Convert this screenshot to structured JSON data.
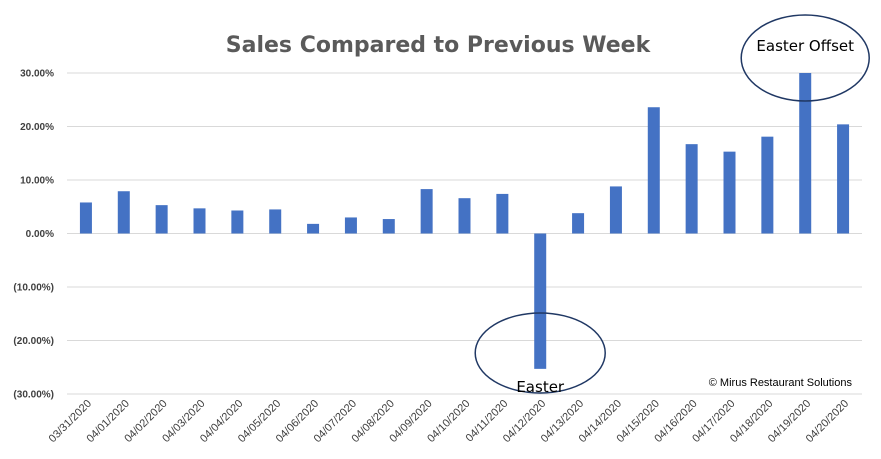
{
  "chart_data": {
    "type": "bar",
    "title": "Sales Compared to Previous Week",
    "xlabel": "",
    "ylabel": "",
    "ylim": [
      -30,
      30
    ],
    "yticks": [
      30,
      20,
      10,
      0,
      -10,
      -20,
      -30
    ],
    "ytick_labels": [
      "30.00%",
      "20.00%",
      "10.00%",
      "0.00%",
      "(10.00%)",
      "(20.00%)",
      "(30.00%)"
    ],
    "grid": true,
    "legend": "none",
    "bar_color": "#4472c4",
    "categories": [
      "03/31/2020",
      "04/01/2020",
      "04/02/2020",
      "04/03/2020",
      "04/04/2020",
      "04/05/2020",
      "04/06/2020",
      "04/07/2020",
      "04/08/2020",
      "04/09/2020",
      "04/10/2020",
      "04/11/2020",
      "04/12/2020",
      "04/13/2020",
      "04/14/2020",
      "04/15/2020",
      "04/16/2020",
      "04/17/2020",
      "04/18/2020",
      "04/19/2020",
      "04/20/2020"
    ],
    "values": [
      5.8,
      7.9,
      5.3,
      4.7,
      4.3,
      4.5,
      1.8,
      3.0,
      2.7,
      8.3,
      6.6,
      7.4,
      -25.3,
      3.8,
      8.8,
      23.6,
      16.7,
      15.3,
      18.1,
      30.0,
      20.4
    ],
    "annotations": [
      {
        "text": "Easter",
        "category": "04/12/2020"
      },
      {
        "text": "Easter Offset",
        "category": "04/19/2020"
      }
    ]
  },
  "copyright": "© Mirus Restaurant Solutions"
}
